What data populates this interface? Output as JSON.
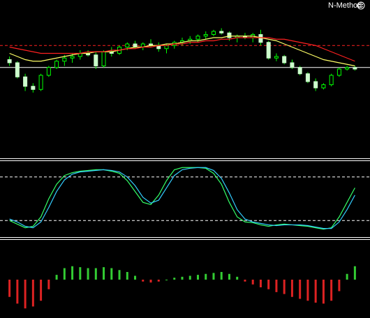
{
  "chart_data": [
    {
      "type": "candlestick",
      "title": "N-Method",
      "ylim": [
        0,
        100
      ],
      "up_color": "#00ff00",
      "down_color": "#ccffcc",
      "candles": [
        [
          62,
          64,
          58,
          60
        ],
        [
          60,
          61,
          50,
          51
        ],
        [
          51,
          53,
          42,
          45
        ],
        [
          45,
          47,
          41,
          43
        ],
        [
          43,
          53,
          42,
          52
        ],
        [
          52,
          58,
          51,
          57
        ],
        [
          57,
          62,
          56,
          61
        ],
        [
          61,
          65,
          58,
          63
        ],
        [
          63,
          66,
          60,
          64
        ],
        [
          64,
          68,
          62,
          66
        ],
        [
          66,
          68,
          64,
          65
        ],
        [
          65,
          67,
          56,
          58
        ],
        [
          58,
          68,
          57,
          67
        ],
        [
          67,
          70,
          64,
          66
        ],
        [
          66,
          71,
          65,
          70
        ],
        [
          70,
          73,
          68,
          72
        ],
        [
          72,
          74,
          69,
          70
        ],
        [
          70,
          73,
          68,
          72
        ],
        [
          72,
          75,
          70,
          71
        ],
        [
          71,
          73,
          67,
          69
        ],
        [
          69,
          72,
          66,
          71
        ],
        [
          71,
          74,
          69,
          73
        ],
        [
          73,
          76,
          71,
          74
        ],
        [
          74,
          77,
          72,
          75
        ],
        [
          75,
          78,
          73,
          77
        ],
        [
          77,
          80,
          75,
          78
        ],
        [
          78,
          81,
          77,
          80
        ],
        [
          80,
          82,
          78,
          79
        ],
        [
          79,
          80,
          74,
          76
        ],
        [
          76,
          78,
          73,
          77
        ],
        [
          77,
          79,
          75,
          76
        ],
        [
          76,
          79,
          73,
          78
        ],
        [
          78,
          81,
          71,
          73
        ],
        [
          73,
          74,
          62,
          63
        ],
        [
          63,
          66,
          61,
          64
        ],
        [
          64,
          65,
          59,
          60
        ],
        [
          60,
          62,
          56,
          57
        ],
        [
          57,
          58,
          52,
          53
        ],
        [
          53,
          54,
          47,
          48
        ],
        [
          48,
          50,
          42,
          44
        ],
        [
          44,
          47,
          43,
          46
        ],
        [
          46,
          53,
          45,
          52
        ],
        [
          52,
          57,
          51,
          56
        ],
        [
          56,
          58,
          55,
          57
        ],
        [
          57,
          58,
          55,
          56
        ]
      ],
      "series": [
        {
          "color": "#ffff66",
          "values": [
            66,
            64,
            62,
            61,
            61,
            62,
            63,
            64,
            65,
            66,
            66,
            67,
            67,
            67,
            68,
            69,
            70,
            70,
            71,
            71,
            72,
            72,
            73,
            74,
            74,
            75,
            76,
            76,
            77,
            77,
            77,
            77,
            76,
            75,
            74,
            72,
            70,
            68,
            66,
            64,
            62,
            61,
            60,
            59,
            58
          ]
        },
        {
          "color": "#ff2020",
          "values": [
            70,
            69,
            68,
            67,
            66,
            66,
            66,
            66,
            66,
            66,
            67,
            67,
            67,
            68,
            68,
            69,
            69,
            70,
            70,
            71,
            71,
            72,
            72,
            73,
            73,
            74,
            74,
            75,
            75,
            76,
            76,
            76,
            76,
            76,
            75,
            75,
            74,
            73,
            72,
            71,
            69,
            67,
            65,
            63,
            61
          ]
        }
      ],
      "levels": [
        {
          "value": 71,
          "color": "#ff2020",
          "dashed": true
        },
        {
          "value": 57,
          "color": "#ffffff",
          "dashed": false
        }
      ]
    },
    {
      "type": "line",
      "ylim": [
        0,
        100
      ],
      "series": [
        {
          "color": "#33ff66",
          "values": [
            20,
            15,
            10,
            12,
            25,
            50,
            70,
            82,
            86,
            88,
            89,
            90,
            90,
            88,
            85,
            75,
            60,
            45,
            42,
            55,
            75,
            90,
            93,
            93,
            93,
            92,
            85,
            70,
            45,
            25,
            18,
            17,
            14,
            12,
            14,
            15,
            14,
            13,
            12,
            10,
            8,
            10,
            25,
            45,
            65
          ]
        },
        {
          "color": "#33ccff",
          "values": [
            22,
            18,
            12,
            10,
            18,
            38,
            60,
            76,
            84,
            87,
            88,
            89,
            90,
            89,
            87,
            80,
            68,
            52,
            44,
            48,
            65,
            82,
            90,
            92,
            93,
            93,
            89,
            78,
            58,
            35,
            22,
            18,
            16,
            14,
            13,
            14,
            14,
            14,
            13,
            11,
            9,
            9,
            18,
            35,
            55
          ]
        }
      ],
      "levels": [
        {
          "value": 80,
          "color": "#ffffff",
          "dashed": true
        },
        {
          "value": 20,
          "color": "#ffffff",
          "dashed": true
        }
      ]
    },
    {
      "type": "histogram",
      "ylim": [
        -40,
        40
      ],
      "up_color": "#33cc33",
      "down_color": "#dd2222",
      "values": [
        -18,
        -25,
        -30,
        -28,
        -22,
        -10,
        5,
        12,
        14,
        13,
        12,
        12,
        13,
        12,
        10,
        8,
        4,
        -2,
        -3,
        -2,
        0,
        2,
        3,
        4,
        5,
        6,
        7,
        8,
        6,
        3,
        -2,
        -5,
        -8,
        -10,
        -13,
        -15,
        -18,
        -20,
        -22,
        -24,
        -25,
        -22,
        -12,
        6,
        14
      ]
    }
  ]
}
